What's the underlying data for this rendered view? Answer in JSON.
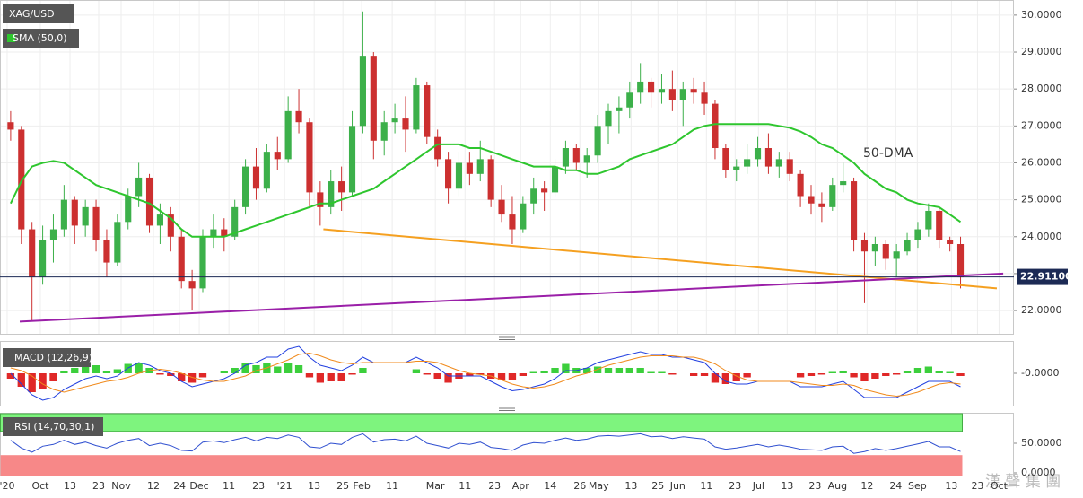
{
  "chart_data": {
    "type": "candlestick",
    "title": "XAG/USD",
    "indicator_label": "SMA (50,0)",
    "up_color": "#3cb04a",
    "down_color": "#cc3030",
    "candles": [
      [
        27.1,
        27.4,
        26.6,
        26.9
      ],
      [
        26.9,
        27.0,
        23.8,
        24.2
      ],
      [
        24.2,
        24.4,
        21.7,
        22.9
      ],
      [
        22.9,
        24.3,
        22.7,
        23.9
      ],
      [
        23.9,
        24.6,
        23.3,
        24.2
      ],
      [
        24.2,
        25.4,
        24.0,
        25.0
      ],
      [
        25.0,
        25.1,
        23.8,
        24.3
      ],
      [
        24.3,
        25.0,
        24.0,
        24.8
      ],
      [
        24.8,
        25.0,
        23.6,
        23.9
      ],
      [
        23.9,
        24.2,
        22.9,
        23.3
      ],
      [
        23.3,
        24.6,
        23.2,
        24.4
      ],
      [
        24.4,
        25.3,
        24.2,
        25.1
      ],
      [
        25.1,
        26.0,
        24.8,
        25.6
      ],
      [
        25.6,
        25.7,
        24.1,
        24.3
      ],
      [
        24.3,
        24.9,
        23.8,
        24.6
      ],
      [
        24.6,
        24.8,
        23.6,
        24.0
      ],
      [
        24.0,
        24.2,
        22.6,
        22.8
      ],
      [
        22.8,
        23.1,
        22.0,
        22.6
      ],
      [
        22.6,
        24.2,
        22.5,
        24.0
      ],
      [
        24.0,
        24.6,
        23.7,
        24.2
      ],
      [
        24.2,
        24.5,
        23.6,
        24.0
      ],
      [
        24.0,
        25.0,
        23.9,
        24.8
      ],
      [
        24.8,
        26.1,
        24.6,
        25.9
      ],
      [
        25.9,
        26.4,
        25.0,
        25.3
      ],
      [
        25.3,
        26.5,
        25.2,
        26.3
      ],
      [
        26.3,
        26.7,
        25.8,
        26.1
      ],
      [
        26.1,
        27.8,
        26.0,
        27.4
      ],
      [
        27.4,
        28.0,
        26.8,
        27.1
      ],
      [
        27.1,
        27.2,
        24.8,
        25.2
      ],
      [
        25.2,
        25.5,
        24.3,
        24.8
      ],
      [
        24.8,
        25.8,
        24.6,
        25.5
      ],
      [
        25.5,
        25.9,
        24.7,
        25.2
      ],
      [
        25.2,
        27.4,
        25.1,
        27.0
      ],
      [
        27.0,
        30.1,
        26.8,
        28.9
      ],
      [
        28.9,
        29.0,
        26.1,
        26.6
      ],
      [
        26.6,
        27.4,
        26.2,
        27.1
      ],
      [
        27.1,
        27.6,
        26.8,
        27.2
      ],
      [
        27.2,
        27.8,
        26.3,
        26.9
      ],
      [
        26.9,
        28.3,
        26.8,
        28.1
      ],
      [
        28.1,
        28.2,
        26.5,
        26.7
      ],
      [
        26.7,
        26.9,
        25.9,
        26.1
      ],
      [
        26.1,
        26.3,
        24.9,
        25.3
      ],
      [
        25.3,
        26.3,
        25.1,
        26.0
      ],
      [
        26.0,
        26.3,
        25.4,
        25.7
      ],
      [
        25.7,
        26.6,
        25.5,
        26.1
      ],
      [
        26.1,
        26.2,
        24.8,
        25.0
      ],
      [
        25.0,
        25.4,
        24.4,
        24.6
      ],
      [
        24.6,
        25.1,
        23.8,
        24.2
      ],
      [
        24.2,
        25.1,
        24.1,
        24.9
      ],
      [
        24.9,
        25.6,
        24.6,
        25.3
      ],
      [
        25.3,
        25.5,
        24.7,
        25.2
      ],
      [
        25.2,
        26.1,
        25.1,
        25.9
      ],
      [
        25.9,
        26.6,
        25.7,
        26.4
      ],
      [
        26.4,
        26.5,
        25.8,
        26.0
      ],
      [
        26.0,
        26.4,
        25.6,
        26.2
      ],
      [
        26.2,
        27.3,
        26.0,
        27.0
      ],
      [
        27.0,
        27.6,
        26.5,
        27.4
      ],
      [
        27.4,
        27.8,
        26.8,
        27.5
      ],
      [
        27.5,
        28.2,
        27.2,
        27.9
      ],
      [
        27.9,
        28.7,
        27.6,
        28.2
      ],
      [
        28.2,
        28.3,
        27.5,
        27.9
      ],
      [
        27.9,
        28.4,
        27.6,
        28.0
      ],
      [
        28.0,
        28.5,
        27.4,
        27.7
      ],
      [
        27.7,
        28.2,
        27.0,
        28.0
      ],
      [
        28.0,
        28.3,
        27.6,
        27.9
      ],
      [
        27.9,
        28.2,
        27.3,
        27.6
      ],
      [
        27.6,
        27.7,
        26.1,
        26.4
      ],
      [
        26.4,
        26.5,
        25.6,
        25.8
      ],
      [
        25.8,
        26.1,
        25.5,
        25.9
      ],
      [
        25.9,
        26.5,
        25.7,
        26.1
      ],
      [
        26.1,
        26.7,
        25.9,
        26.4
      ],
      [
        26.4,
        26.8,
        25.7,
        25.9
      ],
      [
        25.9,
        26.3,
        25.6,
        26.1
      ],
      [
        26.1,
        26.3,
        25.5,
        25.7
      ],
      [
        25.7,
        25.8,
        24.8,
        25.1
      ],
      [
        25.1,
        25.4,
        24.6,
        24.9
      ],
      [
        24.9,
        25.2,
        24.4,
        24.8
      ],
      [
        24.8,
        25.6,
        24.7,
        25.4
      ],
      [
        25.4,
        26.0,
        25.2,
        25.5
      ],
      [
        25.5,
        25.6,
        23.6,
        23.9
      ],
      [
        23.9,
        24.1,
        22.2,
        23.6
      ],
      [
        23.6,
        24.0,
        23.2,
        23.8
      ],
      [
        23.8,
        23.9,
        23.1,
        23.4
      ],
      [
        23.4,
        23.8,
        22.9,
        23.6
      ],
      [
        23.6,
        24.1,
        23.5,
        23.9
      ],
      [
        23.9,
        24.4,
        23.7,
        24.2
      ],
      [
        24.2,
        24.9,
        24.0,
        24.7
      ],
      [
        24.7,
        24.8,
        23.7,
        23.9
      ],
      [
        23.9,
        24.0,
        23.6,
        23.8
      ],
      [
        23.8,
        24.0,
        22.6,
        22.9
      ]
    ],
    "sma": {
      "name": "50-DMA",
      "color": "#2ec62e",
      "values": [
        24.9,
        25.5,
        25.9,
        26.0,
        26.05,
        26.0,
        25.8,
        25.6,
        25.4,
        25.3,
        25.2,
        25.1,
        25.0,
        24.9,
        24.7,
        24.5,
        24.2,
        24.0,
        24.0,
        24.0,
        24.0,
        24.1,
        24.2,
        24.3,
        24.4,
        24.5,
        24.6,
        24.7,
        24.8,
        24.9,
        24.9,
        25.0,
        25.1,
        25.2,
        25.3,
        25.5,
        25.7,
        25.9,
        26.1,
        26.3,
        26.5,
        26.5,
        26.5,
        26.4,
        26.4,
        26.3,
        26.2,
        26.1,
        26.0,
        25.9,
        25.9,
        25.9,
        25.8,
        25.8,
        25.7,
        25.7,
        25.8,
        25.9,
        26.1,
        26.2,
        26.3,
        26.4,
        26.5,
        26.7,
        26.9,
        27.0,
        27.05,
        27.05,
        27.05,
        27.05,
        27.05,
        27.05,
        27.0,
        26.95,
        26.85,
        26.7,
        26.5,
        26.4,
        26.2,
        26.0,
        25.7,
        25.5,
        25.3,
        25.2,
        25.0,
        24.9,
        24.85,
        24.8,
        24.6,
        24.4
      ]
    },
    "trendlines": [
      {
        "color": "#f5a020",
        "x": [
          29.3,
          92.4
        ],
        "y": [
          24.2,
          22.6
        ]
      },
      {
        "color": "#9a1fa8",
        "x": [
          0.85,
          93.0
        ],
        "y": [
          21.7,
          23.0
        ]
      }
    ],
    "last_price": {
      "value": 22.911,
      "label": "22.91100"
    },
    "last_price_color": "#1c2a55",
    "xlim": [
      -1,
      94
    ],
    "ylim": [
      21.37,
      30.41
    ],
    "yticks": [
      {
        "value": 30,
        "label": "30.0000"
      },
      {
        "value": 29,
        "label": "29.0000"
      },
      {
        "value": 28,
        "label": "28.0000"
      },
      {
        "value": 27,
        "label": "27.0000"
      },
      {
        "value": 26,
        "label": "26.0000"
      },
      {
        "value": 25,
        "label": "25.0000"
      },
      {
        "value": 24,
        "label": "24.0000"
      },
      {
        "value": 23,
        "label": "23.0000"
      },
      {
        "value": 22,
        "label": "22.0000"
      }
    ],
    "xticks": [
      {
        "value": -0.33,
        "label": "'20"
      },
      {
        "value": 2.78,
        "label": "Oct"
      },
      {
        "value": 5.56,
        "label": "13"
      },
      {
        "value": 8.25,
        "label": "23"
      },
      {
        "value": 10.35,
        "label": "Nov"
      },
      {
        "value": 13.38,
        "label": "12"
      },
      {
        "value": 15.82,
        "label": "24"
      },
      {
        "value": 17.67,
        "label": "Dec"
      },
      {
        "value": 20.45,
        "label": "11"
      },
      {
        "value": 23.22,
        "label": "23"
      },
      {
        "value": 25.66,
        "label": "'21"
      },
      {
        "value": 28.44,
        "label": "13"
      },
      {
        "value": 31.13,
        "label": "25"
      },
      {
        "value": 32.89,
        "label": "Feb"
      },
      {
        "value": 35.75,
        "label": "11"
      },
      {
        "value": 39.79,
        "label": "Mar"
      },
      {
        "value": 42.57,
        "label": "11"
      },
      {
        "value": 45.34,
        "label": "23"
      },
      {
        "value": 47.78,
        "label": "Apr"
      },
      {
        "value": 50.56,
        "label": "14"
      },
      {
        "value": 53.33,
        "label": "26"
      },
      {
        "value": 55.1,
        "label": "May"
      },
      {
        "value": 58.13,
        "label": "13"
      },
      {
        "value": 60.65,
        "label": "25"
      },
      {
        "value": 62.5,
        "label": "Jun"
      },
      {
        "value": 65.19,
        "label": "11"
      },
      {
        "value": 67.88,
        "label": "23"
      },
      {
        "value": 70.07,
        "label": "Jul"
      },
      {
        "value": 72.76,
        "label": "13"
      },
      {
        "value": 75.37,
        "label": "23"
      },
      {
        "value": 77.47,
        "label": "Aug"
      },
      {
        "value": 80.24,
        "label": "12"
      },
      {
        "value": 82.93,
        "label": "24"
      },
      {
        "value": 84.95,
        "label": "Sep"
      },
      {
        "value": 88.15,
        "label": "13"
      },
      {
        "value": 90.59,
        "label": "23"
      },
      {
        "value": 92.61,
        "label": "Oct"
      }
    ],
    "grid": true,
    "macd": {
      "label": "MACD (12,26,9)",
      "ylim": [
        -1.2,
        1.2
      ],
      "yticks": [
        {
          "value": 0,
          "label": "-0.0000"
        }
      ],
      "macd": {
        "color": "#2240e0",
        "values": [
          0.0,
          -0.4,
          -0.8,
          -1.0,
          -0.9,
          -0.6,
          -0.4,
          -0.2,
          -0.1,
          -0.2,
          -0.1,
          0.2,
          0.4,
          0.3,
          0.1,
          0.0,
          -0.3,
          -0.5,
          -0.4,
          -0.3,
          -0.2,
          0.0,
          0.3,
          0.4,
          0.6,
          0.6,
          0.9,
          1.0,
          0.6,
          0.3,
          0.2,
          0.1,
          0.3,
          0.6,
          0.4,
          0.4,
          0.4,
          0.4,
          0.6,
          0.4,
          0.2,
          -0.1,
          -0.1,
          -0.1,
          -0.1,
          -0.3,
          -0.5,
          -0.65,
          -0.6,
          -0.5,
          -0.4,
          -0.2,
          0.1,
          0.1,
          0.2,
          0.4,
          0.5,
          0.6,
          0.7,
          0.8,
          0.7,
          0.7,
          0.6,
          0.6,
          0.5,
          0.4,
          0.0,
          -0.3,
          -0.4,
          -0.4,
          -0.3,
          -0.3,
          -0.3,
          -0.3,
          -0.5,
          -0.5,
          -0.5,
          -0.4,
          -0.3,
          -0.6,
          -0.9,
          -0.9,
          -0.9,
          -0.9,
          -0.7,
          -0.5,
          -0.3,
          -0.3,
          -0.3,
          -0.5
        ]
      },
      "signal": {
        "color": "#f08a1c",
        "values": [
          0.2,
          0.1,
          -0.1,
          -0.4,
          -0.6,
          -0.7,
          -0.6,
          -0.5,
          -0.4,
          -0.3,
          -0.25,
          -0.15,
          0.0,
          0.1,
          0.15,
          0.1,
          0.0,
          -0.15,
          -0.25,
          -0.3,
          -0.3,
          -0.2,
          -0.1,
          0.1,
          0.2,
          0.35,
          0.5,
          0.7,
          0.75,
          0.65,
          0.5,
          0.4,
          0.35,
          0.4,
          0.4,
          0.4,
          0.4,
          0.4,
          0.45,
          0.45,
          0.4,
          0.25,
          0.1,
          0.0,
          -0.05,
          -0.1,
          -0.25,
          -0.4,
          -0.5,
          -0.55,
          -0.5,
          -0.4,
          -0.25,
          -0.1,
          0.0,
          0.15,
          0.3,
          0.4,
          0.5,
          0.6,
          0.65,
          0.65,
          0.65,
          0.6,
          0.6,
          0.5,
          0.35,
          0.1,
          -0.1,
          -0.25,
          -0.3,
          -0.3,
          -0.3,
          -0.3,
          -0.35,
          -0.4,
          -0.45,
          -0.45,
          -0.4,
          -0.45,
          -0.6,
          -0.7,
          -0.8,
          -0.85,
          -0.8,
          -0.7,
          -0.55,
          -0.4,
          -0.35,
          -0.4
        ]
      },
      "histogram": {
        "up_color": "#3ccf3c",
        "down_color": "#e02828",
        "values": [
          -0.2,
          -0.5,
          -0.7,
          -0.6,
          -0.3,
          0.1,
          0.2,
          0.3,
          0.3,
          0.1,
          0.15,
          0.35,
          0.4,
          0.2,
          -0.05,
          -0.1,
          -0.3,
          -0.35,
          -0.15,
          0.0,
          0.1,
          0.2,
          0.4,
          0.3,
          0.4,
          0.25,
          0.4,
          0.3,
          -0.15,
          -0.35,
          -0.3,
          -0.3,
          -0.05,
          0.2,
          0.0,
          0.0,
          0.0,
          0.0,
          0.15,
          -0.05,
          -0.2,
          -0.35,
          -0.2,
          -0.1,
          -0.05,
          -0.2,
          -0.25,
          -0.25,
          -0.1,
          0.05,
          0.1,
          0.2,
          0.35,
          0.2,
          0.2,
          0.25,
          0.2,
          0.2,
          0.2,
          0.2,
          0.05,
          0.05,
          -0.05,
          0.0,
          -0.1,
          -0.1,
          -0.35,
          -0.4,
          -0.3,
          -0.15,
          0.0,
          0.0,
          0.0,
          0.0,
          -0.15,
          -0.1,
          -0.05,
          0.05,
          0.1,
          -0.15,
          -0.3,
          -0.2,
          -0.1,
          -0.05,
          0.1,
          0.2,
          0.25,
          0.1,
          0.05,
          -0.1
        ]
      }
    },
    "rsi": {
      "label": "RSI (14,70,30,1)",
      "color": "#3050d0",
      "overbought": 70,
      "oversold": 30,
      "overbought_color": "#7ef47e",
      "oversold_color": "#f78888",
      "ylim": [
        0,
        100
      ],
      "yticks": [
        {
          "value": 50,
          "label": "50.0000"
        },
        {
          "value": 0,
          "label": "0.0000"
        }
      ],
      "values": [
        55,
        42,
        35,
        45,
        48,
        55,
        48,
        52,
        46,
        42,
        50,
        55,
        58,
        46,
        50,
        46,
        38,
        37,
        52,
        54,
        51,
        56,
        60,
        54,
        60,
        58,
        64,
        60,
        44,
        42,
        50,
        48,
        60,
        66,
        52,
        56,
        57,
        54,
        62,
        50,
        46,
        42,
        50,
        48,
        52,
        43,
        41,
        38,
        47,
        51,
        50,
        55,
        59,
        55,
        57,
        62,
        63,
        62,
        64,
        66,
        61,
        62,
        58,
        61,
        59,
        57,
        44,
        40,
        42,
        45,
        48,
        44,
        47,
        44,
        40,
        39,
        38,
        44,
        45,
        33,
        36,
        41,
        38,
        41,
        45,
        49,
        53,
        44,
        44,
        36
      ]
    },
    "watermark": "漢 聲 集 團"
  }
}
